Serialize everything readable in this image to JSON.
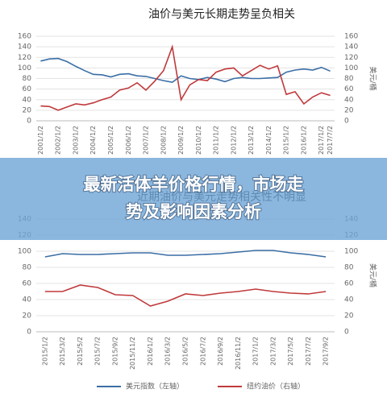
{
  "chart_data": [
    {
      "type": "line",
      "title": "油价与美元长期走势呈负相关",
      "y2_label": "美元/桶",
      "categories": [
        "2001/1/2",
        null,
        "2002/1/2",
        null,
        "2003/1/2",
        null,
        "2004/1/2",
        null,
        "2005/1/2",
        null,
        "2006/1/2",
        null,
        "2007/1/2",
        null,
        "2008/1/2",
        null,
        "2009/1/2",
        null,
        "2010/1/2",
        null,
        "2011/1/2",
        null,
        "2012/1/2",
        null,
        "2013/1/2",
        null,
        "2014/1/2",
        null,
        "2015/1/2",
        null,
        "2016/1/2",
        null,
        "2017/1/2",
        "2017/7/2"
      ],
      "ylim": [
        0,
        160
      ],
      "yticks": [
        0,
        20,
        40,
        60,
        80,
        100,
        120,
        140,
        160
      ],
      "y2lim": [
        0,
        160
      ],
      "y2ticks": [
        0,
        20,
        40,
        60,
        80,
        100,
        120,
        140,
        160
      ],
      "grid": true,
      "series": [
        {
          "name": "美元指数",
          "color": "#3a6ea5",
          "values": [
            113,
            117,
            118,
            112,
            103,
            95,
            88,
            87,
            83,
            88,
            89,
            85,
            84,
            80,
            76,
            73,
            85,
            80,
            78,
            82,
            79,
            74,
            80,
            82,
            80,
            80,
            81,
            82,
            92,
            96,
            98,
            96,
            101,
            94
          ]
        },
        {
          "name": "纽约油价",
          "color": "#c0393b",
          "axis": "y2",
          "values": [
            28,
            27,
            20,
            26,
            32,
            30,
            34,
            40,
            45,
            58,
            62,
            72,
            58,
            75,
            95,
            140,
            40,
            68,
            78,
            76,
            92,
            98,
            100,
            85,
            95,
            105,
            98,
            104,
            50,
            55,
            32,
            45,
            53,
            48
          ]
        }
      ]
    },
    {
      "type": "line",
      "title": "近期油价与美元走势相关性不明显",
      "y2_label": "美元/桶",
      "categories": [
        "2015/1/2",
        "2015/3/2",
        "2015/5/2",
        "2015/7/2",
        "2015/9/2",
        "2015/11/2",
        "2016/1/2",
        "2016/3/2",
        "2016/5/2",
        "2016/7/2",
        "2016/9/2",
        "2016/11/2",
        "2017/1/2",
        "2017/3/2",
        "2017/5/2",
        "2017/7/2",
        "2017/9/2"
      ],
      "ylim": [
        0,
        140
      ],
      "yticks": [
        0,
        20,
        40,
        60,
        80,
        100,
        120,
        140
      ],
      "y2lim": [
        0,
        140
      ],
      "y2ticks": [
        0,
        20,
        40,
        60,
        80,
        100,
        120,
        140
      ],
      "grid": true,
      "legend": "bottom",
      "series": [
        {
          "name": "美元指数（左轴）",
          "color": "#3a6ea5",
          "values": [
            93,
            97,
            96,
            96,
            97,
            98,
            98,
            95,
            95,
            96,
            97,
            99,
            101,
            101,
            98,
            96,
            93
          ]
        },
        {
          "name": "纽约油价（右轴）",
          "color": "#c0393b",
          "axis": "y2",
          "values": [
            50,
            50,
            58,
            55,
            46,
            45,
            32,
            38,
            47,
            45,
            48,
            50,
            53,
            50,
            48,
            47,
            50
          ]
        }
      ]
    }
  ],
  "overlay": {
    "title_lines": [
      "最新活体羊价格行情，市场走",
      "势及影响因素分析"
    ]
  }
}
